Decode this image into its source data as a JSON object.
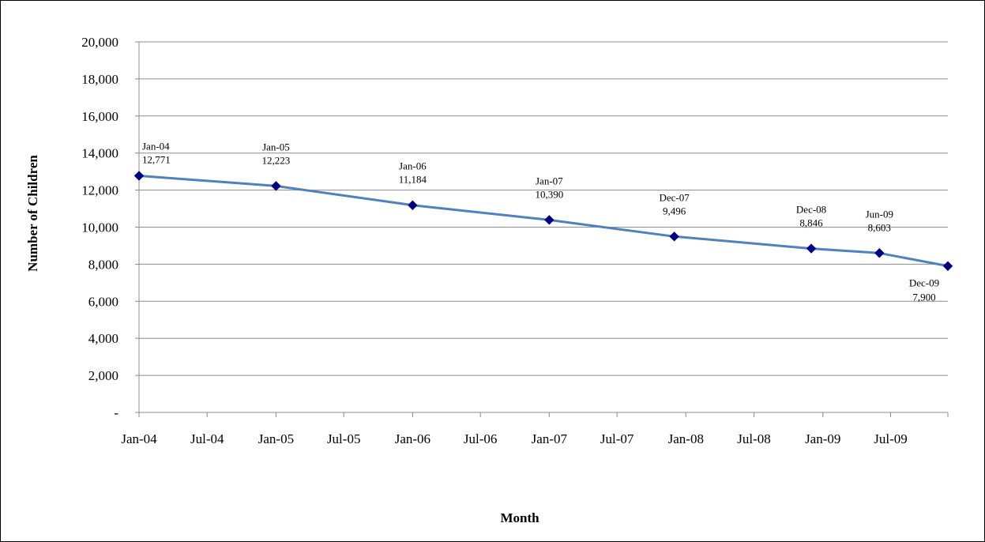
{
  "chart_data": {
    "type": "line",
    "xlabel": "Month",
    "ylabel": "Number of Children",
    "x_axis": {
      "type": "date",
      "range": [
        "2004-01-01",
        "2009-12-01"
      ],
      "tick_labels": [
        "Jan-04",
        "Jul-04",
        "Jan-05",
        "Jul-05",
        "Jan-06",
        "Jul-06",
        "Jan-07",
        "Jul-07",
        "Jan-08",
        "Jul-08",
        "Jan-09",
        "Jul-09"
      ],
      "tick_dates": [
        "2004-01-01",
        "2004-07-01",
        "2005-01-01",
        "2005-07-01",
        "2006-01-01",
        "2006-07-01",
        "2007-01-01",
        "2007-07-01",
        "2008-01-01",
        "2008-07-01",
        "2009-01-01",
        "2009-07-01"
      ]
    },
    "y_axis": {
      "range": [
        0,
        20000
      ],
      "ticks": [
        0,
        2000,
        4000,
        6000,
        8000,
        10000,
        12000,
        14000,
        16000,
        18000,
        20000
      ],
      "tick_labels": [
        "-",
        "2,000",
        "4,000",
        "6,000",
        "8,000",
        "10,000",
        "12,000",
        "14,000",
        "16,000",
        "18,000",
        "20,000"
      ]
    },
    "grid": {
      "horizontal": true,
      "vertical": false
    },
    "legend": "none",
    "line_color": "#4F81BD",
    "marker_color": "#000080",
    "series": [
      {
        "points": [
          {
            "date": "2004-01-01",
            "value": 12771,
            "label_date": "Jan-04",
            "label_value": "12,771"
          },
          {
            "date": "2005-01-01",
            "value": 12223,
            "label_date": "Jan-05",
            "label_value": "12,223"
          },
          {
            "date": "2006-01-01",
            "value": 11184,
            "label_date": "Jan-06",
            "label_value": "11,184"
          },
          {
            "date": "2007-01-01",
            "value": 10390,
            "label_date": "Jan-07",
            "label_value": "10,390"
          },
          {
            "date": "2007-12-01",
            "value": 9496,
            "label_date": "Dec-07",
            "label_value": "9,496"
          },
          {
            "date": "2008-12-01",
            "value": 8846,
            "label_date": "Dec-08",
            "label_value": "8,846"
          },
          {
            "date": "2009-06-01",
            "value": 8603,
            "label_date": "Jun-09",
            "label_value": "8,603"
          },
          {
            "date": "2009-12-01",
            "value": 7900,
            "label_date": "Dec-09",
            "label_value": "7,900"
          }
        ]
      }
    ]
  }
}
